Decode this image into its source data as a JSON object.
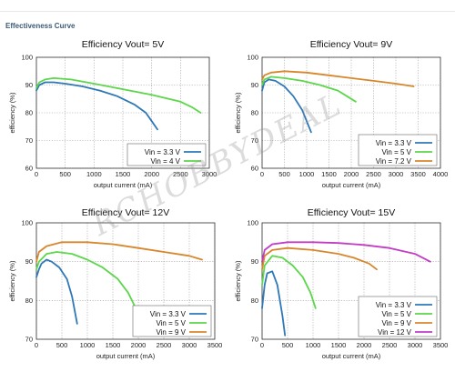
{
  "header": {
    "title": "Effectiveness Curve"
  },
  "watermark": "RCHOBBYDEAL",
  "chart_data": [
    {
      "type": "line",
      "title": "Efficiency Vout= 5V",
      "xlabel": "output current (mA)",
      "ylabel": "efficiency (%)",
      "xlim": [
        0,
        3000
      ],
      "ylim": [
        60,
        100
      ],
      "xticks": [
        0,
        500,
        1000,
        1500,
        2000,
        2500,
        3000
      ],
      "yticks": [
        60,
        70,
        80,
        90,
        100
      ],
      "grid": true,
      "legend_position": "bottom-right",
      "series": [
        {
          "name": "Vin = 3.3 V",
          "color": "#2e78b8",
          "x": [
            0,
            50,
            150,
            300,
            500,
            800,
            1100,
            1400,
            1700,
            1900,
            2000,
            2100
          ],
          "y": [
            88,
            90,
            91,
            91,
            90.5,
            89.5,
            88,
            86,
            83,
            80,
            77,
            74
          ]
        },
        {
          "name": "Vin = 4 V",
          "color": "#5cd64a",
          "x": [
            0,
            50,
            150,
            300,
            600,
            1000,
            1500,
            2000,
            2500,
            2700,
            2850
          ],
          "y": [
            89,
            91,
            92,
            92.5,
            92,
            90.5,
            88.5,
            86.5,
            84,
            82,
            80
          ]
        }
      ]
    },
    {
      "type": "line",
      "title": "Efficiency Vout= 9V",
      "xlabel": "output current (mA)",
      "ylabel": "efficiency (%)",
      "xlim": [
        0,
        4000
      ],
      "ylim": [
        60,
        100
      ],
      "xticks": [
        0,
        500,
        1000,
        1500,
        2000,
        2500,
        3000,
        3500,
        4000
      ],
      "yticks": [
        60,
        70,
        80,
        90,
        100
      ],
      "grid": true,
      "legend_position": "bottom-right",
      "series": [
        {
          "name": "Vin = 3.3 V",
          "color": "#2e78b8",
          "x": [
            0,
            50,
            150,
            300,
            500,
            700,
            900,
            1000,
            1100
          ],
          "y": [
            88,
            91,
            92,
            91.5,
            89.5,
            86,
            81,
            77,
            73
          ]
        },
        {
          "name": "Vin = 5 V",
          "color": "#5cd64a",
          "x": [
            0,
            50,
            200,
            500,
            900,
            1300,
            1700,
            1900,
            2100
          ],
          "y": [
            90,
            92,
            93,
            92.5,
            91.5,
            90,
            88,
            86,
            84
          ]
        },
        {
          "name": "Vin = 7.2 V",
          "color": "#d8862c",
          "x": [
            0,
            50,
            200,
            500,
            1000,
            1500,
            2000,
            2500,
            3000,
            3400
          ],
          "y": [
            92,
            93.5,
            94.5,
            95,
            94.5,
            93.5,
            92.5,
            91.5,
            90.5,
            89.5
          ]
        }
      ]
    },
    {
      "type": "line",
      "title": "Efficiency Vout= 12V",
      "xlabel": "output current (mA)",
      "ylabel": "efficiency (%)",
      "xlim": [
        0,
        3500
      ],
      "ylim": [
        70,
        100
      ],
      "xticks": [
        0,
        500,
        1000,
        1500,
        2000,
        2500,
        3000,
        3500
      ],
      "yticks": [
        70,
        80,
        90,
        100
      ],
      "grid": true,
      "legend_position": "bottom-right",
      "series": [
        {
          "name": "Vin = 3.3 V",
          "color": "#2e78b8",
          "x": [
            0,
            50,
            100,
            200,
            300,
            450,
            600,
            700,
            800
          ],
          "y": [
            86,
            88,
            89.5,
            90.5,
            90,
            88.5,
            85.5,
            81,
            74
          ]
        },
        {
          "name": "Vin = 5 V",
          "color": "#5cd64a",
          "x": [
            0,
            50,
            200,
            400,
            700,
            1000,
            1300,
            1600,
            1800,
            1950
          ],
          "y": [
            88,
            90,
            92,
            92.5,
            92,
            90.5,
            88.5,
            85.5,
            82,
            78
          ]
        },
        {
          "name": "Vin = 9 V",
          "color": "#d8862c",
          "x": [
            0,
            50,
            200,
            500,
            1000,
            1500,
            2000,
            2500,
            3000,
            3250
          ],
          "y": [
            90,
            92.5,
            94,
            95,
            95,
            94.5,
            93.5,
            92.5,
            91.5,
            90.5
          ]
        }
      ]
    },
    {
      "type": "line",
      "title": "Efficiency Vout= 15V",
      "xlabel": "output current (mA)",
      "ylabel": "efficiency (%)",
      "xlim": [
        0,
        3500
      ],
      "ylim": [
        70,
        100
      ],
      "xticks": [
        0,
        500,
        1000,
        1500,
        2000,
        2500,
        3000,
        3500
      ],
      "yticks": [
        70,
        80,
        90,
        100
      ],
      "grid": true,
      "legend_position": "bottom-right",
      "series": [
        {
          "name": "Vin = 3.3 V",
          "color": "#2e78b8",
          "x": [
            0,
            50,
            100,
            200,
            300,
            400,
            450
          ],
          "y": [
            78,
            84,
            87,
            87.5,
            84,
            76,
            71
          ]
        },
        {
          "name": "Vin = 5 V",
          "color": "#5cd64a",
          "x": [
            0,
            50,
            200,
            400,
            600,
            800,
            950,
            1050
          ],
          "y": [
            84,
            89,
            91.5,
            91,
            89,
            86,
            82,
            78
          ]
        },
        {
          "name": "Vin = 9 V",
          "color": "#d8862c",
          "x": [
            0,
            50,
            200,
            500,
            1000,
            1500,
            1800,
            2100,
            2250
          ],
          "y": [
            88,
            91.5,
            93,
            93.5,
            93,
            92,
            91,
            89.5,
            88
          ]
        },
        {
          "name": "Vin = 12 V",
          "color": "#c23cc4",
          "x": [
            0,
            50,
            200,
            500,
            1000,
            1500,
            2000,
            2500,
            3000,
            3300
          ],
          "y": [
            90,
            93,
            94.5,
            95,
            95,
            94.8,
            94.3,
            93.5,
            92,
            90
          ]
        }
      ]
    }
  ]
}
